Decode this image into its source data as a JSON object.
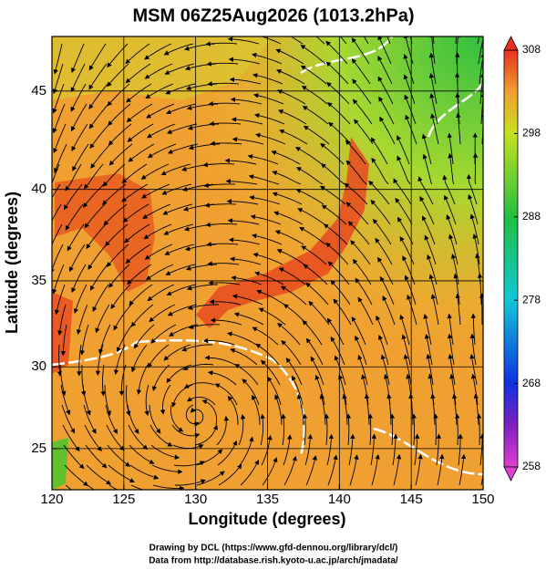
{
  "title": "MSM 06Z25Aug2026 (1013.2hPa)",
  "x_axis": {
    "label": "Longitude (degrees)",
    "lim": [
      120,
      150
    ],
    "ticks": [
      120,
      125,
      130,
      135,
      140,
      145,
      150
    ]
  },
  "y_axis": {
    "label": "Latitude  (degrees)",
    "lim": [
      22.4,
      47.6
    ],
    "ticks": [
      25,
      30,
      35,
      40,
      45
    ],
    "projection": "mercator"
  },
  "colorbar": {
    "lim": [
      258,
      308
    ],
    "ticks": [
      258,
      268,
      278,
      288,
      298,
      308
    ]
  },
  "credits": [
    "Drawing by DCL (https://www.gfd-dennou.org/library/dcl/)",
    "Data from http://database.rish.kyoto-u.ac.jp/arch/jmadata/"
  ]
}
